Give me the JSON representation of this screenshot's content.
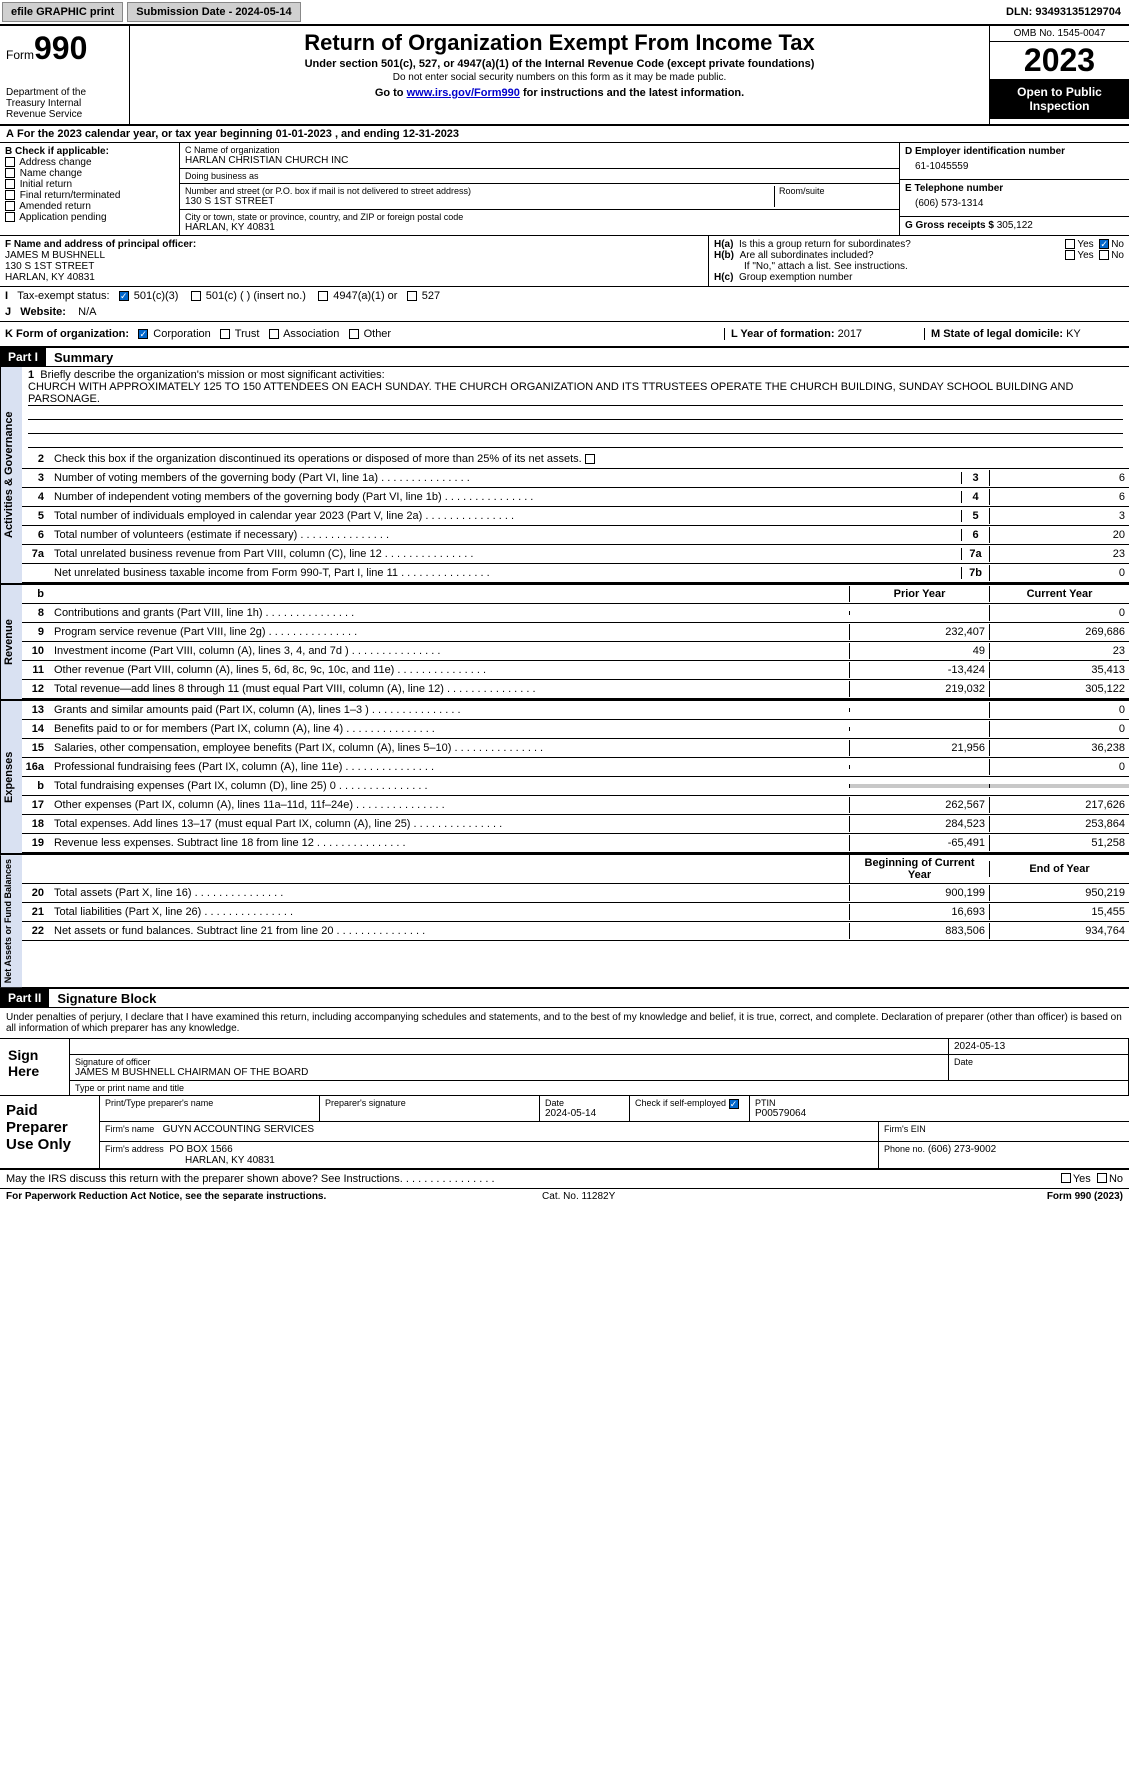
{
  "topbar": {
    "efile": "efile GRAPHIC print",
    "submission": "Submission Date - 2024-05-14",
    "dln": "DLN: 93493135129704"
  },
  "header": {
    "form_label": "Form",
    "form_num": "990",
    "dept": "Department of the Treasury\nInternal Revenue Service",
    "title": "Return of Organization Exempt From Income Tax",
    "sub1": "Under section 501(c), 527, or 4947(a)(1) of the Internal Revenue Code (except private foundations)",
    "sub2": "Do not enter social security numbers on this form as it may be made public.",
    "sub3_pre": "Go to ",
    "sub3_link": "www.irs.gov/Form990",
    "sub3_post": " for instructions and the latest information.",
    "omb": "OMB No. 1545-0047",
    "year": "2023",
    "open": "Open to Public Inspection"
  },
  "A": "For the 2023 calendar year, or tax year beginning 01-01-2023   , and ending 12-31-2023",
  "B": {
    "label": "B Check if applicable:",
    "items": [
      "Address change",
      "Name change",
      "Initial return",
      "Final return/terminated",
      "Amended return",
      "Application pending"
    ]
  },
  "C": {
    "name_lbl": "C Name of organization",
    "name": "HARLAN CHRISTIAN CHURCH INC",
    "dba_lbl": "Doing business as",
    "dba": "",
    "street_lbl": "Number and street (or P.O. box if mail is not delivered to street address)",
    "street": "130 S 1ST STREET",
    "room_lbl": "Room/suite",
    "room": "",
    "city_lbl": "City or town, state or province, country, and ZIP or foreign postal code",
    "city": "HARLAN, KY  40831"
  },
  "D": {
    "lbl": "D Employer identification number",
    "val": "61-1045559"
  },
  "E": {
    "lbl": "E Telephone number",
    "val": "(606) 573-1314"
  },
  "G": {
    "lbl": "G Gross receipts $",
    "val": "305,122"
  },
  "F": {
    "lbl": "F  Name and address of principal officer:",
    "name": "JAMES M BUSHNELL",
    "street": "130 S 1ST STREET",
    "city": "HARLAN, KY  40831"
  },
  "H": {
    "a": "Is this a group return for subordinates?",
    "b": "Are all subordinates included?",
    "b_note": "If \"No,\" attach a list. See instructions.",
    "c": "Group exemption number",
    "yes": "Yes",
    "no": "No"
  },
  "I": {
    "lbl": "Tax-exempt status:",
    "opt1": "501(c)(3)",
    "opt2": "501(c) (  ) (insert no.)",
    "opt3": "4947(a)(1) or",
    "opt4": "527"
  },
  "J": {
    "lbl": "Website:",
    "val": "N/A"
  },
  "K": {
    "lbl": "K Form of organization:",
    "opts": [
      "Corporation",
      "Trust",
      "Association",
      "Other"
    ]
  },
  "L": {
    "lbl": "L Year of formation:",
    "val": "2017"
  },
  "M": {
    "lbl": "M State of legal domicile:",
    "val": "KY"
  },
  "parts": {
    "p1": "Part I",
    "p1_title": "Summary",
    "p2": "Part II",
    "p2_title": "Signature Block"
  },
  "sections": {
    "ag": "Activities & Governance",
    "rev": "Revenue",
    "exp": "Expenses",
    "net": "Net Assets or Fund Balances"
  },
  "line1": {
    "lbl": "Briefly describe the organization's mission or most significant activities:",
    "text": "CHURCH WITH APPROXIMATELY 125 TO 150 ATTENDEES ON EACH SUNDAY. THE CHURCH ORGANIZATION AND ITS TTRUSTEES OPERATE THE CHURCH BUILDING, SUNDAY SCHOOL BUILDING AND PARSONAGE."
  },
  "line2": "Check this box       if the organization discontinued its operations or disposed of more than 25% of its net assets.",
  "lines_ag": [
    {
      "n": "3",
      "d": "Number of voting members of the governing body (Part VI, line 1a)",
      "b": "3",
      "v": "6"
    },
    {
      "n": "4",
      "d": "Number of independent voting members of the governing body (Part VI, line 1b)",
      "b": "4",
      "v": "6"
    },
    {
      "n": "5",
      "d": "Total number of individuals employed in calendar year 2023 (Part V, line 2a)",
      "b": "5",
      "v": "3"
    },
    {
      "n": "6",
      "d": "Total number of volunteers (estimate if necessary)",
      "b": "6",
      "v": "20"
    },
    {
      "n": "7a",
      "d": "Total unrelated business revenue from Part VIII, column (C), line 12",
      "b": "7a",
      "v": "23"
    },
    {
      "n": "",
      "d": "Net unrelated business taxable income from Form 990-T, Part I, line 11",
      "b": "7b",
      "v": "0"
    }
  ],
  "col_hdr": {
    "prior": "Prior Year",
    "current": "Current Year",
    "begin": "Beginning of Current Year",
    "end": "End of Year"
  },
  "lines_rev": [
    {
      "n": "8",
      "d": "Contributions and grants (Part VIII, line 1h)",
      "c1": "",
      "c2": "0"
    },
    {
      "n": "9",
      "d": "Program service revenue (Part VIII, line 2g)",
      "c1": "232,407",
      "c2": "269,686"
    },
    {
      "n": "10",
      "d": "Investment income (Part VIII, column (A), lines 3, 4, and 7d )",
      "c1": "49",
      "c2": "23"
    },
    {
      "n": "11",
      "d": "Other revenue (Part VIII, column (A), lines 5, 6d, 8c, 9c, 10c, and 11e)",
      "c1": "-13,424",
      "c2": "35,413"
    },
    {
      "n": "12",
      "d": "Total revenue—add lines 8 through 11 (must equal Part VIII, column (A), line 12)",
      "c1": "219,032",
      "c2": "305,122"
    }
  ],
  "lines_exp": [
    {
      "n": "13",
      "d": "Grants and similar amounts paid (Part IX, column (A), lines 1–3 )",
      "c1": "",
      "c2": "0"
    },
    {
      "n": "14",
      "d": "Benefits paid to or for members (Part IX, column (A), line 4)",
      "c1": "",
      "c2": "0"
    },
    {
      "n": "15",
      "d": "Salaries, other compensation, employee benefits (Part IX, column (A), lines 5–10)",
      "c1": "21,956",
      "c2": "36,238"
    },
    {
      "n": "16a",
      "d": "Professional fundraising fees (Part IX, column (A), line 11e)",
      "c1": "",
      "c2": "0"
    },
    {
      "n": "b",
      "d": "Total fundraising expenses (Part IX, column (D), line 25) 0",
      "c1": "shaded",
      "c2": "shaded"
    },
    {
      "n": "17",
      "d": "Other expenses (Part IX, column (A), lines 11a–11d, 11f–24e)",
      "c1": "262,567",
      "c2": "217,626"
    },
    {
      "n": "18",
      "d": "Total expenses. Add lines 13–17 (must equal Part IX, column (A), line 25)",
      "c1": "284,523",
      "c2": "253,864"
    },
    {
      "n": "19",
      "d": "Revenue less expenses. Subtract line 18 from line 12",
      "c1": "-65,491",
      "c2": "51,258"
    }
  ],
  "lines_net": [
    {
      "n": "20",
      "d": "Total assets (Part X, line 16)",
      "c1": "900,199",
      "c2": "950,219"
    },
    {
      "n": "21",
      "d": "Total liabilities (Part X, line 26)",
      "c1": "16,693",
      "c2": "15,455"
    },
    {
      "n": "22",
      "d": "Net assets or fund balances. Subtract line 21 from line 20",
      "c1": "883,506",
      "c2": "934,764"
    }
  ],
  "sig": {
    "decl": "Under penalties of perjury, I declare that I have examined this return, including accompanying schedules and statements, and to the best of my knowledge and belief, it is true, correct, and complete. Declaration of preparer (other than officer) is based on all information of which preparer has any knowledge.",
    "sign_here": "Sign Here",
    "sig_lbl": "Signature of officer",
    "officer": "JAMES M BUSHNELL  CHAIRMAN OF THE BOARD",
    "type_lbl": "Type or print name and title",
    "date_lbl": "Date",
    "date": "2024-05-13"
  },
  "paid": {
    "lbl": "Paid Preparer Use Only",
    "print_lbl": "Print/Type preparer's name",
    "sig_lbl": "Preparer's signature",
    "date_lbl": "Date",
    "date": "2024-05-14",
    "check_lbl": "Check         if self-employed",
    "ptin_lbl": "PTIN",
    "ptin": "P00579064",
    "firm_name_lbl": "Firm's name",
    "firm_name": "GUYN ACCOUNTING SERVICES",
    "firm_ein_lbl": "Firm's EIN",
    "firm_addr_lbl": "Firm's address",
    "firm_addr1": "PO BOX 1566",
    "firm_addr2": "HARLAN, KY  40831",
    "phone_lbl": "Phone no.",
    "phone": "(606) 273-9002"
  },
  "discuss": {
    "q": "May the IRS discuss this return with the preparer shown above? See Instructions.",
    "yes": "Yes",
    "no": "No"
  },
  "footer": {
    "left": "For Paperwork Reduction Act Notice, see the separate instructions.",
    "mid": "Cat. No. 11282Y",
    "right": "Form 990 (2023)"
  }
}
